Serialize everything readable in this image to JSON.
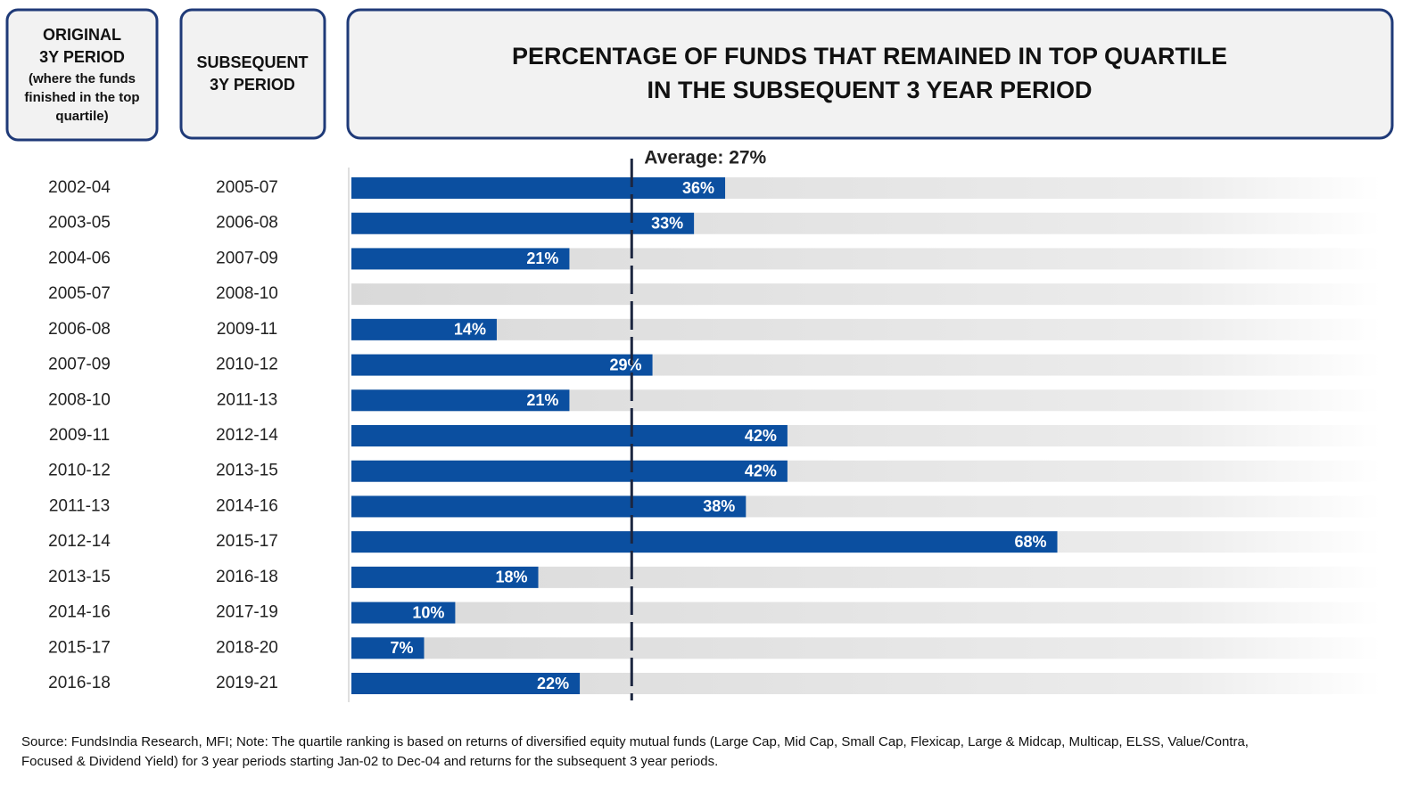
{
  "chart_data": {
    "type": "bar",
    "orientation": "horizontal",
    "title": [
      "PERCENTAGE OF FUNDS THAT REMAINED IN TOP QUARTILE",
      "IN THE SUBSEQUENT 3 YEAR PERIOD"
    ],
    "original_header": [
      "ORIGINAL",
      "3Y PERIOD",
      "(where the funds",
      "finished in the top",
      "quartile)"
    ],
    "subsequent_header": [
      "SUBSEQUENT",
      "3Y PERIOD"
    ],
    "categories": [
      "2002-04",
      "2003-05",
      "2004-06",
      "2005-07",
      "2006-08",
      "2007-09",
      "2008-10",
      "2009-11",
      "2010-12",
      "2011-13",
      "2012-14",
      "2013-15",
      "2014-16",
      "2015-17",
      "2016-18"
    ],
    "subsequent_periods": [
      "2005-07",
      "2006-08",
      "2007-09",
      "2008-10",
      "2009-11",
      "2010-12",
      "2011-13",
      "2012-14",
      "2013-15",
      "2014-16",
      "2015-17",
      "2016-18",
      "2017-19",
      "2018-20",
      "2019-21"
    ],
    "values": [
      36,
      33,
      21,
      null,
      14,
      29,
      21,
      42,
      42,
      38,
      68,
      18,
      10,
      7,
      22
    ],
    "value_labels": [
      "36%",
      "33%",
      "21%",
      null,
      "14%",
      "29%",
      "21%",
      "42%",
      "42%",
      "38%",
      "68%",
      "18%",
      "10%",
      "7%",
      "22%"
    ],
    "color": "#0b4fa0",
    "xlim": [
      0,
      100
    ],
    "average": {
      "value": 27,
      "label": "Average: 27%"
    },
    "source": [
      "Source: FundsIndia Research, MFI;   Note: The quartile ranking is based on returns of diversified equity mutual funds (Large Cap, Mid Cap, Small Cap, Flexicap, Large & Midcap, Multicap, ELSS, Value/Contra,",
      "Focused & Dividend Yield) for 3 year periods starting Jan-02 to Dec-04 and returns for the subsequent 3 year periods."
    ]
  }
}
